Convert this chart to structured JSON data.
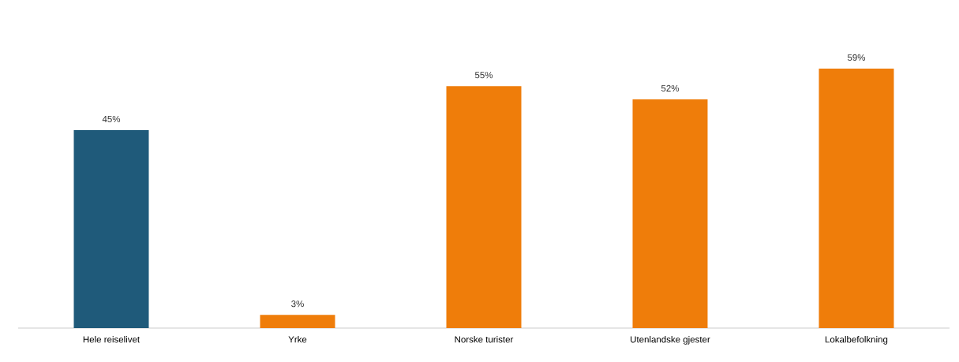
{
  "chart_data": {
    "type": "bar",
    "categories": [
      "Hele reiselivet",
      "Yrke",
      "Norske turister",
      "Utenlandske gjester",
      "Lokalbefolkning"
    ],
    "values": [
      45,
      3,
      55,
      52,
      59
    ],
    "colors": [
      "#1f5a7a",
      "#ef7d0a",
      "#ef7d0a",
      "#ef7d0a",
      "#ef7d0a"
    ],
    "value_labels": [
      "45%",
      "3%",
      "55%",
      "52%",
      "59%"
    ]
  }
}
